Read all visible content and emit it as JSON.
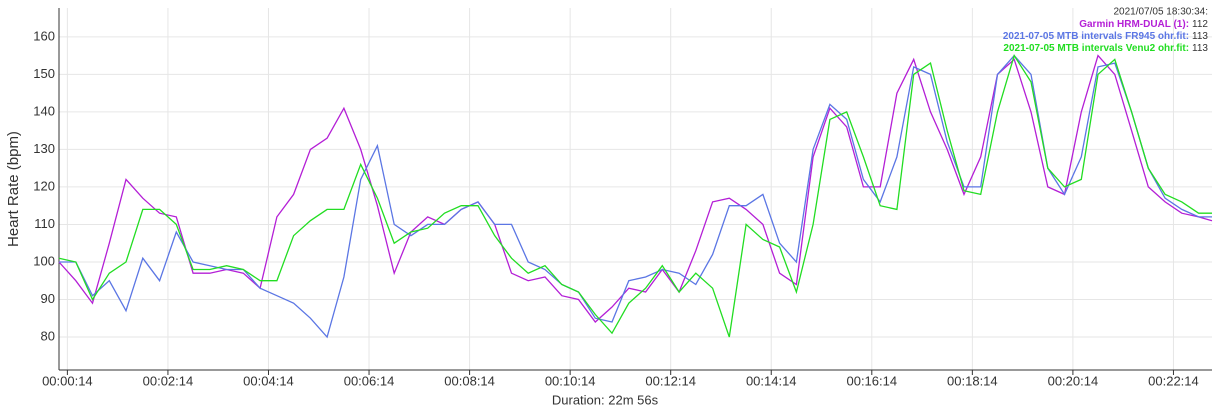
{
  "chart_data": {
    "type": "line",
    "y_label": "Heart Rate (bpm)",
    "x_label": "Duration: 22m 56s",
    "legend_time": "2021/07/05 18:30:34:",
    "xlim": [
      4,
      1380
    ],
    "ylim": [
      71.2,
      167.7
    ],
    "xticks": [
      {
        "value": 14,
        "label": "00:00:14"
      },
      {
        "value": 134,
        "label": "00:02:14"
      },
      {
        "value": 254,
        "label": "00:04:14"
      },
      {
        "value": 374,
        "label": "00:06:14"
      },
      {
        "value": 494,
        "label": "00:08:14"
      },
      {
        "value": 614,
        "label": "00:10:14"
      },
      {
        "value": 734,
        "label": "00:12:14"
      },
      {
        "value": 854,
        "label": "00:14:14"
      },
      {
        "value": 974,
        "label": "00:16:14"
      },
      {
        "value": 1094,
        "label": "00:18:14"
      },
      {
        "value": 1214,
        "label": "00:20:14"
      },
      {
        "value": 1334,
        "label": "00:22:14"
      }
    ],
    "yticks": [
      80,
      90,
      100,
      110,
      120,
      130,
      140,
      150,
      160
    ],
    "grid": true,
    "x": [
      4,
      24,
      44,
      64,
      84,
      104,
      124,
      144,
      164,
      184,
      204,
      224,
      244,
      264,
      284,
      304,
      324,
      344,
      364,
      384,
      404,
      424,
      444,
      464,
      484,
      504,
      524,
      544,
      564,
      584,
      604,
      624,
      644,
      664,
      684,
      704,
      724,
      744,
      764,
      784,
      804,
      824,
      844,
      864,
      884,
      904,
      924,
      944,
      964,
      984,
      1004,
      1024,
      1044,
      1064,
      1084,
      1104,
      1124,
      1144,
      1164,
      1184,
      1204,
      1224,
      1244,
      1264,
      1284,
      1304,
      1324,
      1344,
      1364,
      1380
    ],
    "series": [
      {
        "name": "Garmin HRM-DUAL (1):",
        "color": "#b41fd6",
        "current": 112,
        "values": [
          100,
          95,
          89,
          105,
          122,
          117,
          113,
          112,
          97,
          97,
          98,
          97,
          93,
          112,
          118,
          130,
          133,
          141,
          130,
          115,
          97,
          108,
          112,
          110,
          114,
          116,
          110,
          97,
          95,
          96,
          91,
          90,
          84,
          88,
          93,
          92,
          98,
          92,
          103,
          116,
          117,
          114,
          110,
          97,
          94,
          128,
          141,
          136,
          120,
          120,
          145,
          154,
          140,
          130,
          118,
          128,
          150,
          154,
          140,
          120,
          118,
          140,
          155,
          150,
          135,
          120,
          116,
          113,
          112,
          111
        ]
      },
      {
        "name": "2021-07-05 MTB intervals FR945 ohr.fit:",
        "color": "#5b76e4",
        "current": 113,
        "values": [
          100,
          100,
          91,
          95,
          87,
          101,
          95,
          108,
          100,
          99,
          98,
          98,
          93,
          91,
          89,
          85,
          80,
          96,
          122,
          131,
          110,
          107,
          110,
          110,
          114,
          116,
          110,
          110,
          100,
          98,
          94,
          92,
          85,
          84,
          95,
          96,
          98,
          97,
          94,
          102,
          115,
          115,
          118,
          105,
          100,
          130,
          142,
          138,
          122,
          116,
          128,
          152,
          150,
          132,
          120,
          120,
          150,
          155,
          150,
          125,
          118,
          128,
          152,
          153,
          140,
          125,
          117,
          114,
          112,
          112
        ]
      },
      {
        "name": "2021-07-05 MTB intervals Venu2 ohr.fit:",
        "color": "#22dd22",
        "current": 113,
        "values": [
          101,
          100,
          90,
          97,
          100,
          114,
          114,
          110,
          98,
          98,
          99,
          98,
          95,
          95,
          107,
          111,
          114,
          114,
          126,
          117,
          105,
          108,
          109,
          113,
          115,
          115,
          107,
          101,
          97,
          99,
          94,
          92,
          86,
          81,
          89,
          93,
          99,
          92,
          97,
          93,
          80,
          110,
          106,
          104,
          92,
          110,
          138,
          140,
          128,
          115,
          114,
          150,
          153,
          135,
          119,
          118,
          140,
          155,
          148,
          125,
          120,
          122,
          150,
          154,
          140,
          125,
          118,
          116,
          113,
          113
        ]
      }
    ]
  }
}
